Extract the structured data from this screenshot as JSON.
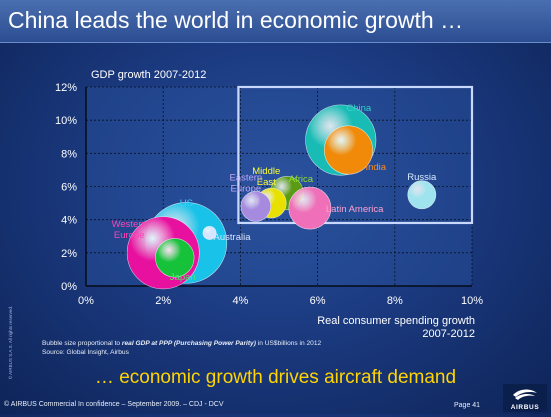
{
  "slide": {
    "title": "China leads the world in economic growth …",
    "footnote_pre": "Bubble size proportional to ",
    "footnote_em": "real GDP at PPP (Purchasing Power Parity)",
    "footnote_post": " in US$billions in 2012",
    "source": "Source: Global Insight, Airbus",
    "tagline": "… economic growth drives aircraft demand",
    "footer": "© AIRBUS Commercial In confidence – September 2009. – CDJ - DCV",
    "page": "Page 41",
    "logo_text": "AIRBUS",
    "side_note": "© AIRBUS S.A.S. All rights reserved."
  },
  "chart_data": {
    "type": "scatter",
    "title": "GDP growth 2007-2012",
    "xlabel": "Real consumer spending growth\n2007-2012",
    "ylabel": "GDP growth 2007-2012",
    "xlim": [
      0,
      10
    ],
    "ylim": [
      0,
      12
    ],
    "xticks": [
      "0%",
      "2%",
      "4%",
      "6%",
      "8%",
      "10%"
    ],
    "yticks": [
      "0%",
      "2%",
      "4%",
      "6%",
      "8%",
      "10%",
      "12%"
    ],
    "grid": true,
    "highlight_box": {
      "x": [
        4.0,
        10.0
      ],
      "y": [
        3.8,
        12.0
      ]
    },
    "series": [
      {
        "name": "China",
        "x": 6.6,
        "y": 8.8,
        "size": 0.8,
        "color": "#19bcb5",
        "label_color": "#2fd6c8"
      },
      {
        "name": "India",
        "x": 6.8,
        "y": 8.2,
        "size": 0.55,
        "color": "#f08a08",
        "label_color": "#ff8c1a"
      },
      {
        "name": "Russia",
        "x": 8.7,
        "y": 5.5,
        "size": 0.32,
        "color": "#9fe3ef",
        "label_color": "#d8ecff"
      },
      {
        "name": "Africa",
        "x": 5.2,
        "y": 5.6,
        "size": 0.38,
        "color": "#5a9a14",
        "label_color": "#8ee02e"
      },
      {
        "name": "Middle East",
        "x": 4.8,
        "y": 5.0,
        "size": 0.34,
        "color": "#e8e000",
        "label_color": "#ffff33"
      },
      {
        "name": "Eastern Europe",
        "x": 4.4,
        "y": 4.8,
        "size": 0.34,
        "color": "#a58adf",
        "label_color": "#bfa6f5"
      },
      {
        "name": "Latin America",
        "x": 5.8,
        "y": 4.7,
        "size": 0.48,
        "color": "#ef70b8",
        "label_color": "#ffa0d0"
      },
      {
        "name": "US",
        "x": 2.6,
        "y": 2.6,
        "size": 0.92,
        "color": "#19c2e8",
        "label_color": "#3fd0ff"
      },
      {
        "name": "Western Europe",
        "x": 2.0,
        "y": 2.0,
        "size": 0.82,
        "color": "#e8109e",
        "label_color": "#ff44b4"
      },
      {
        "name": "Japan",
        "x": 2.3,
        "y": 1.7,
        "size": 0.44,
        "color": "#16c23a",
        "label_color": "#44ee66"
      },
      {
        "name": "Australia",
        "x": 3.2,
        "y": 3.2,
        "size": 0.15,
        "color": "#d6e4ff",
        "label_color": "#d8e4ff"
      }
    ]
  }
}
